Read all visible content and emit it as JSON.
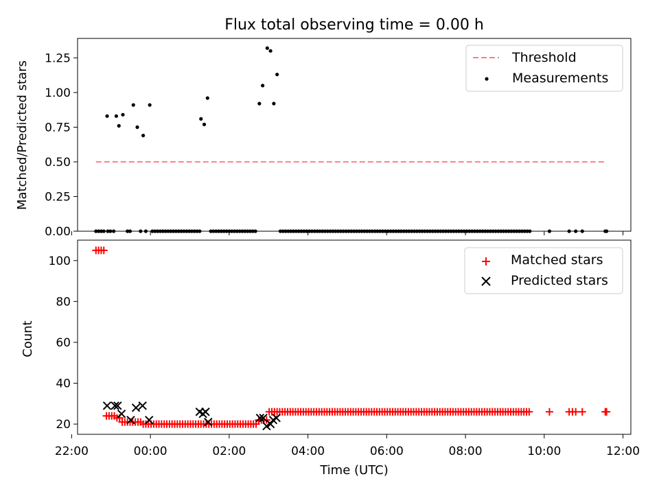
{
  "figure": {
    "title": "Flux total observing time = 0.00 h"
  },
  "chart_data": [
    {
      "type": "scatter",
      "panel": "top",
      "ylabel": "Matched/Predicted stars",
      "xlim_hours": [
        -1.85,
        12.2
      ],
      "ylim": [
        0,
        1.39
      ],
      "yticks": [
        0.0,
        0.25,
        0.5,
        0.75,
        1.0,
        1.25
      ],
      "ytick_labels": [
        "0.00",
        "0.25",
        "0.50",
        "0.75",
        "1.00",
        "1.25"
      ],
      "legend_position": "upper right",
      "legend": [
        {
          "label": "Threshold",
          "kind": "dashed-line",
          "color": "#ff7f7f"
        },
        {
          "label": "Measurements",
          "kind": "dot",
          "color": "#000000"
        }
      ],
      "threshold": {
        "name": "Threshold",
        "value": 0.5,
        "x_start": "22:37",
        "x_end": "11:35",
        "color": "#ff7f7f"
      },
      "series": [
        {
          "name": "Measurements",
          "color": "#000000",
          "points": [
            {
              "t": "22:37",
              "v": 0.0
            },
            {
              "t": "22:41",
              "v": 0.0
            },
            {
              "t": "22:45",
              "v": 0.0
            },
            {
              "t": "22:49",
              "v": 0.0
            },
            {
              "t": "22:55",
              "v": 0.0
            },
            {
              "t": "22:59",
              "v": 0.0
            },
            {
              "t": "23:04",
              "v": 0.0
            },
            {
              "t": "23:25",
              "v": 0.0
            },
            {
              "t": "23:29",
              "v": 0.0
            },
            {
              "t": "23:45",
              "v": 0.0
            },
            {
              "t": "23:53",
              "v": 0.0
            },
            {
              "t": "00:03",
              "v": 0.0
            },
            {
              "t": "00:07",
              "v": 0.0
            },
            {
              "t": "00:11",
              "v": 0.0
            },
            {
              "t": "00:15",
              "v": 0.0
            },
            {
              "t": "00:19",
              "v": 0.0
            },
            {
              "t": "00:23",
              "v": 0.0
            },
            {
              "t": "00:27",
              "v": 0.0
            },
            {
              "t": "00:31",
              "v": 0.0
            },
            {
              "t": "00:35",
              "v": 0.0
            },
            {
              "t": "00:39",
              "v": 0.0
            },
            {
              "t": "00:43",
              "v": 0.0
            },
            {
              "t": "00:47",
              "v": 0.0
            },
            {
              "t": "00:51",
              "v": 0.0
            },
            {
              "t": "00:55",
              "v": 0.0
            },
            {
              "t": "00:59",
              "v": 0.0
            },
            {
              "t": "01:03",
              "v": 0.0
            },
            {
              "t": "01:07",
              "v": 0.0
            },
            {
              "t": "01:11",
              "v": 0.0
            },
            {
              "t": "01:15",
              "v": 0.0
            },
            {
              "t": "01:32",
              "v": 0.0
            },
            {
              "t": "01:36",
              "v": 0.0
            },
            {
              "t": "01:40",
              "v": 0.0
            },
            {
              "t": "01:44",
              "v": 0.0
            },
            {
              "t": "01:48",
              "v": 0.0
            },
            {
              "t": "01:52",
              "v": 0.0
            },
            {
              "t": "01:56",
              "v": 0.0
            },
            {
              "t": "02:00",
              "v": 0.0
            },
            {
              "t": "02:04",
              "v": 0.0
            },
            {
              "t": "02:08",
              "v": 0.0
            },
            {
              "t": "02:12",
              "v": 0.0
            },
            {
              "t": "02:16",
              "v": 0.0
            },
            {
              "t": "02:20",
              "v": 0.0
            },
            {
              "t": "02:24",
              "v": 0.0
            },
            {
              "t": "02:28",
              "v": 0.0
            },
            {
              "t": "02:32",
              "v": 0.0
            },
            {
              "t": "02:36",
              "v": 0.0
            },
            {
              "t": "02:40",
              "v": 0.0
            },
            {
              "t": "03:18",
              "v": 0.0
            },
            {
              "t": "03:22",
              "v": 0.0
            },
            {
              "t": "03:26",
              "v": 0.0
            },
            {
              "t": "03:30",
              "v": 0.0
            },
            {
              "t": "03:34",
              "v": 0.0
            },
            {
              "t": "03:38",
              "v": 0.0
            },
            {
              "t": "03:42",
              "v": 0.0
            },
            {
              "t": "03:46",
              "v": 0.0
            },
            {
              "t": "03:50",
              "v": 0.0
            },
            {
              "t": "03:54",
              "v": 0.0
            },
            {
              "t": "03:58",
              "v": 0.0
            },
            {
              "t": "04:02",
              "v": 0.0
            },
            {
              "t": "04:06",
              "v": 0.0
            },
            {
              "t": "04:10",
              "v": 0.0
            },
            {
              "t": "04:14",
              "v": 0.0
            },
            {
              "t": "04:18",
              "v": 0.0
            },
            {
              "t": "04:22",
              "v": 0.0
            },
            {
              "t": "04:26",
              "v": 0.0
            },
            {
              "t": "04:30",
              "v": 0.0
            },
            {
              "t": "04:34",
              "v": 0.0
            },
            {
              "t": "04:38",
              "v": 0.0
            },
            {
              "t": "04:42",
              "v": 0.0
            },
            {
              "t": "04:46",
              "v": 0.0
            },
            {
              "t": "04:50",
              "v": 0.0
            },
            {
              "t": "04:54",
              "v": 0.0
            },
            {
              "t": "04:58",
              "v": 0.0
            },
            {
              "t": "05:02",
              "v": 0.0
            },
            {
              "t": "05:06",
              "v": 0.0
            },
            {
              "t": "05:10",
              "v": 0.0
            },
            {
              "t": "05:14",
              "v": 0.0
            },
            {
              "t": "05:18",
              "v": 0.0
            },
            {
              "t": "05:22",
              "v": 0.0
            },
            {
              "t": "05:26",
              "v": 0.0
            },
            {
              "t": "05:30",
              "v": 0.0
            },
            {
              "t": "05:34",
              "v": 0.0
            },
            {
              "t": "05:38",
              "v": 0.0
            },
            {
              "t": "05:42",
              "v": 0.0
            },
            {
              "t": "05:46",
              "v": 0.0
            },
            {
              "t": "05:50",
              "v": 0.0
            },
            {
              "t": "05:54",
              "v": 0.0
            },
            {
              "t": "05:58",
              "v": 0.0
            },
            {
              "t": "06:02",
              "v": 0.0
            },
            {
              "t": "06:06",
              "v": 0.0
            },
            {
              "t": "06:10",
              "v": 0.0
            },
            {
              "t": "06:14",
              "v": 0.0
            },
            {
              "t": "06:18",
              "v": 0.0
            },
            {
              "t": "06:22",
              "v": 0.0
            },
            {
              "t": "06:26",
              "v": 0.0
            },
            {
              "t": "06:30",
              "v": 0.0
            },
            {
              "t": "06:34",
              "v": 0.0
            },
            {
              "t": "06:38",
              "v": 0.0
            },
            {
              "t": "06:42",
              "v": 0.0
            },
            {
              "t": "06:46",
              "v": 0.0
            },
            {
              "t": "06:50",
              "v": 0.0
            },
            {
              "t": "06:54",
              "v": 0.0
            },
            {
              "t": "06:58",
              "v": 0.0
            },
            {
              "t": "07:02",
              "v": 0.0
            },
            {
              "t": "07:06",
              "v": 0.0
            },
            {
              "t": "07:10",
              "v": 0.0
            },
            {
              "t": "07:14",
              "v": 0.0
            },
            {
              "t": "07:18",
              "v": 0.0
            },
            {
              "t": "07:22",
              "v": 0.0
            },
            {
              "t": "07:26",
              "v": 0.0
            },
            {
              "t": "07:30",
              "v": 0.0
            },
            {
              "t": "07:34",
              "v": 0.0
            },
            {
              "t": "07:38",
              "v": 0.0
            },
            {
              "t": "07:42",
              "v": 0.0
            },
            {
              "t": "07:46",
              "v": 0.0
            },
            {
              "t": "07:50",
              "v": 0.0
            },
            {
              "t": "07:54",
              "v": 0.0
            },
            {
              "t": "07:58",
              "v": 0.0
            },
            {
              "t": "08:02",
              "v": 0.0
            },
            {
              "t": "08:06",
              "v": 0.0
            },
            {
              "t": "08:10",
              "v": 0.0
            },
            {
              "t": "08:14",
              "v": 0.0
            },
            {
              "t": "08:18",
              "v": 0.0
            },
            {
              "t": "08:22",
              "v": 0.0
            },
            {
              "t": "08:26",
              "v": 0.0
            },
            {
              "t": "08:30",
              "v": 0.0
            },
            {
              "t": "08:34",
              "v": 0.0
            },
            {
              "t": "08:38",
              "v": 0.0
            },
            {
              "t": "08:42",
              "v": 0.0
            },
            {
              "t": "08:46",
              "v": 0.0
            },
            {
              "t": "08:50",
              "v": 0.0
            },
            {
              "t": "08:54",
              "v": 0.0
            },
            {
              "t": "08:58",
              "v": 0.0
            },
            {
              "t": "09:02",
              "v": 0.0
            },
            {
              "t": "09:06",
              "v": 0.0
            },
            {
              "t": "09:10",
              "v": 0.0
            },
            {
              "t": "09:14",
              "v": 0.0
            },
            {
              "t": "09:18",
              "v": 0.0
            },
            {
              "t": "09:22",
              "v": 0.0
            },
            {
              "t": "09:26",
              "v": 0.0
            },
            {
              "t": "09:30",
              "v": 0.0
            },
            {
              "t": "09:34",
              "v": 0.0
            },
            {
              "t": "09:38",
              "v": 0.0
            },
            {
              "t": "10:08",
              "v": 0.0
            },
            {
              "t": "10:38",
              "v": 0.0
            },
            {
              "t": "10:48",
              "v": 0.0
            },
            {
              "t": "10:58",
              "v": 0.0
            },
            {
              "t": "11:33",
              "v": 0.0
            },
            {
              "t": "11:35",
              "v": 0.0
            },
            {
              "t": "22:54",
              "v": 0.83
            },
            {
              "t": "23:08",
              "v": 0.83
            },
            {
              "t": "23:12",
              "v": 0.76
            },
            {
              "t": "23:18",
              "v": 0.84
            },
            {
              "t": "23:34",
              "v": 0.91
            },
            {
              "t": "23:40",
              "v": 0.75
            },
            {
              "t": "23:49",
              "v": 0.69
            },
            {
              "t": "23:59",
              "v": 0.91
            },
            {
              "t": "01:17",
              "v": 0.81
            },
            {
              "t": "01:22",
              "v": 0.77
            },
            {
              "t": "01:27",
              "v": 0.96
            },
            {
              "t": "02:46",
              "v": 0.92
            },
            {
              "t": "02:51",
              "v": 1.05
            },
            {
              "t": "02:58",
              "v": 1.32
            },
            {
              "t": "03:03",
              "v": 1.3
            },
            {
              "t": "03:08",
              "v": 0.92
            },
            {
              "t": "03:13",
              "v": 1.13
            }
          ]
        }
      ]
    },
    {
      "type": "scatter",
      "panel": "bottom",
      "xlabel": "Time (UTC)",
      "ylabel": "Count",
      "xlim_hours": [
        -1.85,
        12.2
      ],
      "ylim": [
        15,
        110
      ],
      "yticks": [
        20,
        40,
        60,
        80,
        100
      ],
      "ytick_labels": [
        "20",
        "40",
        "60",
        "80",
        "100"
      ],
      "xticks_hours": [
        -2,
        0,
        2,
        4,
        6,
        8,
        10,
        12
      ],
      "xtick_labels": [
        "22:00",
        "00:00",
        "02:00",
        "04:00",
        "06:00",
        "08:00",
        "10:00",
        "12:00"
      ],
      "legend_position": "upper right",
      "legend": [
        {
          "label": "Matched stars",
          "kind": "plus",
          "color": "#ff0000"
        },
        {
          "label": "Predicted stars",
          "kind": "x",
          "color": "#000000"
        }
      ],
      "series": [
        {
          "name": "Matched stars",
          "color": "#ff0000",
          "marker": "plus",
          "runs": [
            {
              "from": "22:37",
              "to": "22:49",
              "step_min": 4,
              "value": 105
            },
            {
              "from": "22:53",
              "to": "23:05",
              "step_min": 4,
              "value": 24
            },
            {
              "from": "23:09",
              "to": "23:13",
              "step_min": 4,
              "value": 23
            },
            {
              "from": "23:17",
              "to": "23:29",
              "step_min": 4,
              "value": 21
            },
            {
              "from": "23:33",
              "to": "23:45",
              "step_min": 4,
              "value": 21
            },
            {
              "from": "23:49",
              "to": "02:41",
              "step_min": 4,
              "value": 20
            },
            {
              "from": "02:45",
              "to": "02:57",
              "step_min": 4,
              "value": 22
            },
            {
              "from": "03:01",
              "to": "09:37",
              "step_min": 4,
              "value": 26
            },
            {
              "from": "10:08",
              "to": "10:08",
              "step_min": 4,
              "value": 26
            },
            {
              "from": "10:38",
              "to": "10:48",
              "step_min": 5,
              "value": 26
            },
            {
              "from": "10:58",
              "to": "10:58",
              "step_min": 4,
              "value": 26
            },
            {
              "from": "11:33",
              "to": "11:35",
              "step_min": 2,
              "value": 26
            }
          ]
        },
        {
          "name": "Predicted stars",
          "color": "#000000",
          "marker": "x",
          "points": [
            {
              "t": "22:54",
              "v": 29
            },
            {
              "t": "23:06",
              "v": 29
            },
            {
              "t": "23:10",
              "v": 29
            },
            {
              "t": "23:16",
              "v": 25
            },
            {
              "t": "23:30",
              "v": 22
            },
            {
              "t": "23:38",
              "v": 28
            },
            {
              "t": "23:48",
              "v": 29
            },
            {
              "t": "23:58",
              "v": 22
            },
            {
              "t": "01:15",
              "v": 26
            },
            {
              "t": "01:20",
              "v": 25
            },
            {
              "t": "01:24",
              "v": 26
            },
            {
              "t": "01:28",
              "v": 21
            },
            {
              "t": "02:47",
              "v": 23
            },
            {
              "t": "02:52",
              "v": 23
            },
            {
              "t": "02:57",
              "v": 19
            },
            {
              "t": "03:03",
              "v": 20
            },
            {
              "t": "03:07",
              "v": 22
            },
            {
              "t": "03:12",
              "v": 23
            }
          ]
        }
      ]
    }
  ]
}
